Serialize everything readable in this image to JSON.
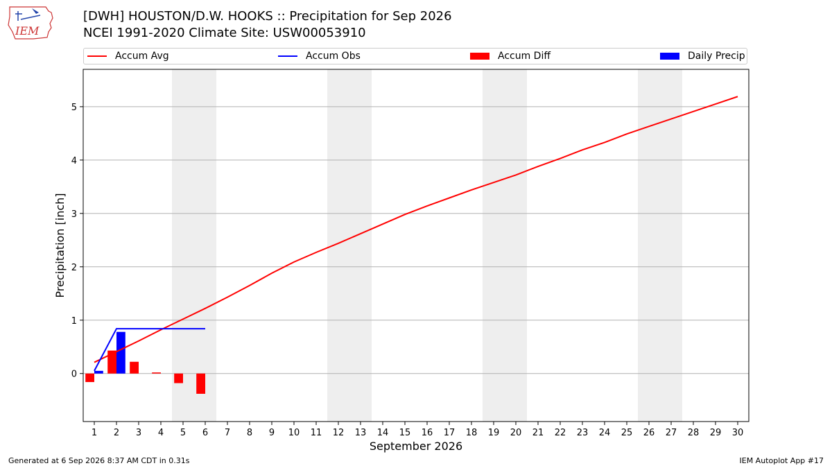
{
  "header": {
    "title": "[DWH] HOUSTON/D.W. HOOKS :: Precipitation for Sep 2026",
    "subtitle": "NCEI 1991-2020 Climate Site: USW00053910",
    "logo_text": "IEM"
  },
  "legend": {
    "placement": "top",
    "items": [
      {
        "label": "Accum Avg",
        "kind": "line",
        "color": "#ff0000"
      },
      {
        "label": "Accum Obs",
        "kind": "line",
        "color": "#0000ff"
      },
      {
        "label": "Accum Diff",
        "kind": "box",
        "color": "#ff0000"
      },
      {
        "label": "Daily Precip",
        "kind": "box",
        "color": "#0000ff"
      }
    ]
  },
  "footer": {
    "generated": "Generated at 6 Sep 2026 8:37 AM CDT in 0.31s",
    "app": "IEM Autoplot App #17"
  },
  "chart_data": {
    "type": "bar",
    "xlabel": "September 2026",
    "ylabel": "Precipitation [inch]",
    "xlim": [
      0.5,
      30.5
    ],
    "ylim": [
      -0.9,
      5.7
    ],
    "grid": true,
    "x_ticks": [
      1,
      2,
      3,
      4,
      5,
      6,
      7,
      8,
      9,
      10,
      11,
      12,
      13,
      14,
      15,
      16,
      17,
      18,
      19,
      20,
      21,
      22,
      23,
      24,
      25,
      26,
      27,
      28,
      29,
      30
    ],
    "y_ticks": [
      0,
      1,
      2,
      3,
      4,
      5
    ],
    "weekend_bands": [
      [
        4.5,
        6.5
      ],
      [
        11.5,
        13.5
      ],
      [
        18.5,
        20.5
      ],
      [
        25.5,
        27.5
      ]
    ],
    "colors": {
      "avg": "#ff0000",
      "obs": "#0000ff",
      "diff": "#ff0000",
      "daily": "#0000ff",
      "band": "#eeeeee"
    },
    "series": [
      {
        "name": "Accum Avg",
        "kind": "line",
        "x": [
          1,
          2,
          3,
          4,
          5,
          6,
          7,
          8,
          9,
          10,
          11,
          12,
          13,
          14,
          15,
          16,
          17,
          18,
          19,
          20,
          21,
          22,
          23,
          24,
          25,
          26,
          27,
          28,
          29,
          30
        ],
        "values": [
          0.21,
          0.41,
          0.61,
          0.82,
          1.02,
          1.22,
          1.43,
          1.65,
          1.88,
          2.09,
          2.27,
          2.44,
          2.62,
          2.8,
          2.98,
          3.14,
          3.29,
          3.44,
          3.58,
          3.72,
          3.88,
          4.03,
          4.19,
          4.33,
          4.49,
          4.63,
          4.77,
          4.91,
          5.05,
          5.19
        ]
      },
      {
        "name": "Accum Obs",
        "kind": "line",
        "x": [
          1,
          2,
          3,
          4,
          5,
          6
        ],
        "values": [
          0.05,
          0.84,
          0.84,
          0.84,
          0.84,
          0.84
        ]
      },
      {
        "name": "Accum Diff",
        "kind": "bar",
        "x": [
          1,
          2,
          3,
          4,
          5,
          6
        ],
        "values": [
          -0.16,
          0.43,
          0.22,
          0.02,
          -0.18,
          -0.38
        ]
      },
      {
        "name": "Daily Precip",
        "kind": "bar",
        "x": [
          1,
          2,
          3,
          4,
          5,
          6
        ],
        "values": [
          0.05,
          0.78,
          0.0,
          0.0,
          0.0,
          0.0
        ]
      }
    ]
  }
}
